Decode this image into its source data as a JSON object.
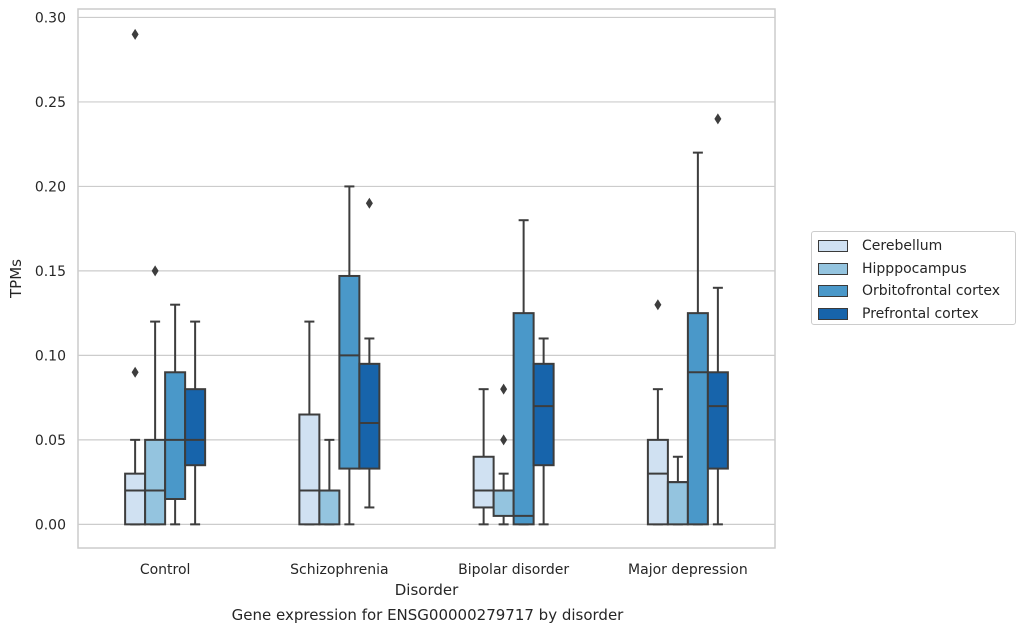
{
  "chart_data": {
    "type": "box",
    "title": "",
    "caption": "Gene expression for ENSG00000279717 by disorder",
    "xlabel": "Disorder",
    "ylabel": "TPMs",
    "ylim": [
      -0.014,
      0.305
    ],
    "yticks": [
      "0.00",
      "0.05",
      "0.10",
      "0.15",
      "0.20",
      "0.25",
      "0.30"
    ],
    "yticks_values": [
      0.0,
      0.05,
      0.1,
      0.15,
      0.2,
      0.25,
      0.3
    ],
    "grid": true,
    "legend_position": "right",
    "categories": [
      "Control",
      "Schizophrenia",
      "Bipolar disorder",
      "Major depression"
    ],
    "series": [
      {
        "name": "Cerebellum",
        "color": "#d0e1f2",
        "boxes": [
          {
            "whislo": 0.0,
            "q1": 0.0,
            "med": 0.02,
            "q3": 0.03,
            "whishi": 0.05,
            "fliers": [
              0.09,
              0.29
            ]
          },
          {
            "whislo": 0.0,
            "q1": 0.0,
            "med": 0.02,
            "q3": 0.065,
            "whishi": 0.12,
            "fliers": []
          },
          {
            "whislo": 0.0,
            "q1": 0.01,
            "med": 0.02,
            "q3": 0.04,
            "whishi": 0.08,
            "fliers": []
          },
          {
            "whislo": 0.0,
            "q1": 0.0,
            "med": 0.03,
            "q3": 0.05,
            "whishi": 0.08,
            "fliers": [
              0.13
            ]
          }
        ]
      },
      {
        "name": "Hipppocampus",
        "color": "#94c4df",
        "boxes": [
          {
            "whislo": 0.0,
            "q1": 0.0,
            "med": 0.02,
            "q3": 0.05,
            "whishi": 0.12,
            "fliers": [
              0.15
            ]
          },
          {
            "whislo": 0.0,
            "q1": 0.0,
            "med": 0.02,
            "q3": 0.02,
            "whishi": 0.05,
            "fliers": []
          },
          {
            "whislo": 0.0,
            "q1": 0.005,
            "med": 0.02,
            "q3": 0.02,
            "whishi": 0.03,
            "fliers": [
              0.05,
              0.08
            ]
          },
          {
            "whislo": 0.0,
            "q1": 0.0,
            "med": 0.025,
            "q3": 0.025,
            "whishi": 0.04,
            "fliers": []
          }
        ]
      },
      {
        "name": "Orbitofrontal cortex",
        "color": "#4a98c9",
        "boxes": [
          {
            "whislo": 0.0,
            "q1": 0.015,
            "med": 0.05,
            "q3": 0.09,
            "whishi": 0.13,
            "fliers": []
          },
          {
            "whislo": 0.0,
            "q1": 0.033,
            "med": 0.1,
            "q3": 0.147,
            "whishi": 0.2,
            "fliers": []
          },
          {
            "whislo": 0.0,
            "q1": 0.0,
            "med": 0.005,
            "q3": 0.125,
            "whishi": 0.18,
            "fliers": []
          },
          {
            "whislo": 0.0,
            "q1": 0.0,
            "med": 0.09,
            "q3": 0.125,
            "whishi": 0.22,
            "fliers": []
          }
        ]
      },
      {
        "name": "Prefrontal cortex",
        "color": "#1764ab",
        "boxes": [
          {
            "whislo": 0.0,
            "q1": 0.035,
            "med": 0.05,
            "q3": 0.08,
            "whishi": 0.12,
            "fliers": []
          },
          {
            "whislo": 0.01,
            "q1": 0.033,
            "med": 0.06,
            "q3": 0.095,
            "whishi": 0.11,
            "fliers": [
              0.19
            ]
          },
          {
            "whislo": 0.0,
            "q1": 0.035,
            "med": 0.07,
            "q3": 0.095,
            "whishi": 0.11,
            "fliers": []
          },
          {
            "whislo": 0.0,
            "q1": 0.033,
            "med": 0.07,
            "q3": 0.09,
            "whishi": 0.14,
            "fliers": [
              0.24
            ]
          }
        ]
      }
    ]
  }
}
